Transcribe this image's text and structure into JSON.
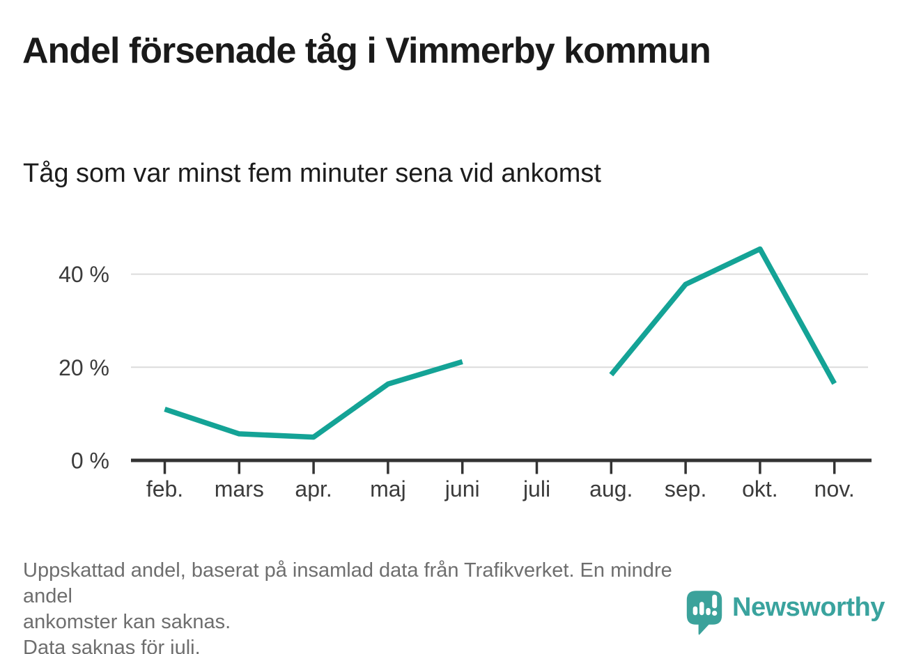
{
  "header": {
    "title": "Andel försenade tåg i Vimmerby kommun",
    "subtitle": "Tåg som var minst fem minuter sena vid ankomst"
  },
  "chart_data": {
    "type": "line",
    "title": "Andel försenade tåg i Vimmerby kommun",
    "subtitle": "Tåg som var minst fem minuter sena vid ankomst",
    "categories": [
      "feb.",
      "mars",
      "apr.",
      "maj",
      "juni",
      "juli",
      "aug.",
      "sep.",
      "okt.",
      "nov."
    ],
    "values": [
      11,
      5.7,
      5,
      16.4,
      21.2,
      null,
      18.4,
      37.8,
      45.4,
      16.5
    ],
    "unit": "%",
    "ylim": [
      0,
      47
    ],
    "yticks": [
      {
        "value": 0,
        "label": "0 %"
      },
      {
        "value": 20,
        "label": "20 %"
      },
      {
        "value": 40,
        "label": "40 %"
      }
    ],
    "grid": "horizontal",
    "legend": "none",
    "gap_note": "no data for juli",
    "line_color": "#14a396"
  },
  "colors": {
    "line": "#14a396",
    "axis": "#333333",
    "tick_label": "#3b3b3b",
    "gridline": "#dcdcdc",
    "footer_text": "#6e6e6e",
    "logo_teal": "#3aa39e",
    "title_text": "#1a1a1a"
  },
  "footer": {
    "lines": [
      "Uppskattad andel, baserat på insamlad data från Trafikverket. En mindre andel",
      "ankomster kan saknas.",
      "Data saknas för juli."
    ]
  },
  "logo": {
    "brand": "Newsworthy"
  }
}
